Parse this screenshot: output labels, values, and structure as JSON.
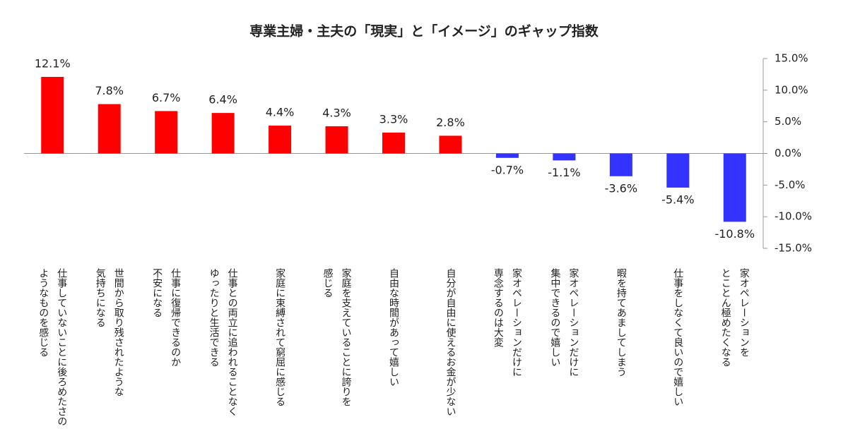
{
  "chart_data": {
    "type": "bar",
    "title": "専業主婦・主夫の「現実」と「イメージ」のギャップ指数",
    "categories": [
      [
        "仕事していないことに後ろめたさの",
        "ようなものを感じる"
      ],
      [
        "世間から取り残されたような",
        "気持ちになる"
      ],
      [
        "仕事に復帰できるのか",
        "不安になる"
      ],
      [
        "仕事との両立に追われることなく",
        "ゆったりと生活できる"
      ],
      [
        "家庭に束縛されて窮屈に感じる"
      ],
      [
        "家庭を支えていることに誇りを",
        "感じる"
      ],
      [
        "自由な時間があって嬉しい"
      ],
      [
        "自分が自由に使えるお金が少ない"
      ],
      [
        "家オペレーションだけに",
        "専念するのは大変"
      ],
      [
        "家オペレーションだけに",
        "集中できるので嬉しい"
      ],
      [
        "暇を持てあましてしまう"
      ],
      [
        "仕事をしなくて良いので嬉しい"
      ],
      [
        "家オペレーションを",
        "とことん極めたくなる"
      ]
    ],
    "values": [
      12.1,
      7.8,
      6.7,
      6.4,
      4.4,
      4.3,
      3.3,
      2.8,
      -0.7,
      -1.1,
      -3.6,
      -5.4,
      -10.8
    ],
    "value_labels": [
      "12.1%",
      "7.8%",
      "6.7%",
      "6.4%",
      "4.4%",
      "4.3%",
      "3.3%",
      "2.8%",
      "-0.7%",
      "-1.1%",
      "-3.6%",
      "-5.4%",
      "-10.8%"
    ],
    "color": "#ff0000",
    "negative_color": "#3333ff",
    "ylim": [
      -15,
      15
    ],
    "yticks": [
      {
        "value": 15,
        "label": "15.0%"
      },
      {
        "value": 10,
        "label": "10.0%"
      },
      {
        "value": 5,
        "label": "5.0%"
      },
      {
        "value": 0,
        "label": "0.0%"
      },
      {
        "value": -5,
        "label": "-5.0%"
      },
      {
        "value": -10,
        "label": "-10.0%"
      },
      {
        "value": -15,
        "label": "-15.0%"
      }
    ]
  }
}
